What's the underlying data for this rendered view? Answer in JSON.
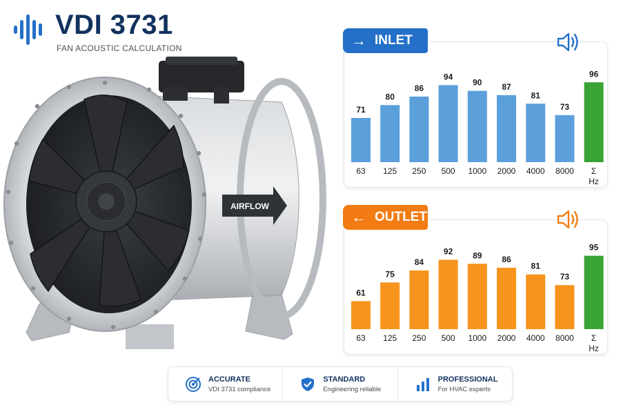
{
  "header": {
    "title": "VDI 3731",
    "subtitle": "FAN ACOUSTIC CALCULATION"
  },
  "illustration": {
    "airflow_label": "AIRFLOW"
  },
  "colors": {
    "inlet_accent": "#2470c9",
    "outlet_accent": "#f27c13",
    "inlet_bar": "#5b9fdb",
    "outlet_bar": "#f7941d",
    "total_bar": "#3aa335",
    "navy": "#12325e"
  },
  "inlet": {
    "label": "INLET",
    "arrow": "→",
    "icon": "speaker-icon"
  },
  "outlet": {
    "label": "OUTLET",
    "arrow": "←",
    "icon": "speaker-icon"
  },
  "chart_data": [
    {
      "type": "bar",
      "name": "INLET",
      "categories": [
        "63",
        "125",
        "250",
        "500",
        "1000",
        "2000",
        "4000",
        "8000",
        "Σ"
      ],
      "values": [
        71,
        80,
        86,
        94,
        90,
        87,
        81,
        73,
        96
      ],
      "total_category": "Σ",
      "xlabel": "Hz",
      "ylim": [
        40,
        100
      ],
      "grid": false
    },
    {
      "type": "bar",
      "name": "OUTLET",
      "categories": [
        "63",
        "125",
        "250",
        "500",
        "1000",
        "2000",
        "4000",
        "8000",
        "Σ"
      ],
      "values": [
        61,
        75,
        84,
        92,
        89,
        86,
        81,
        73,
        95
      ],
      "total_category": "Σ",
      "xlabel": "Hz",
      "ylim": [
        40,
        100
      ],
      "grid": false
    }
  ],
  "footer": {
    "features": [
      {
        "title": "ACCURATE",
        "desc": "VDI 3731 compliance",
        "icon": "target-icon"
      },
      {
        "title": "STANDARD",
        "desc": "Engineering reliable",
        "icon": "shield-check-icon"
      },
      {
        "title": "PROFESSIONAL",
        "desc": "For HVAC experts",
        "icon": "bar-chart-icon"
      }
    ]
  }
}
